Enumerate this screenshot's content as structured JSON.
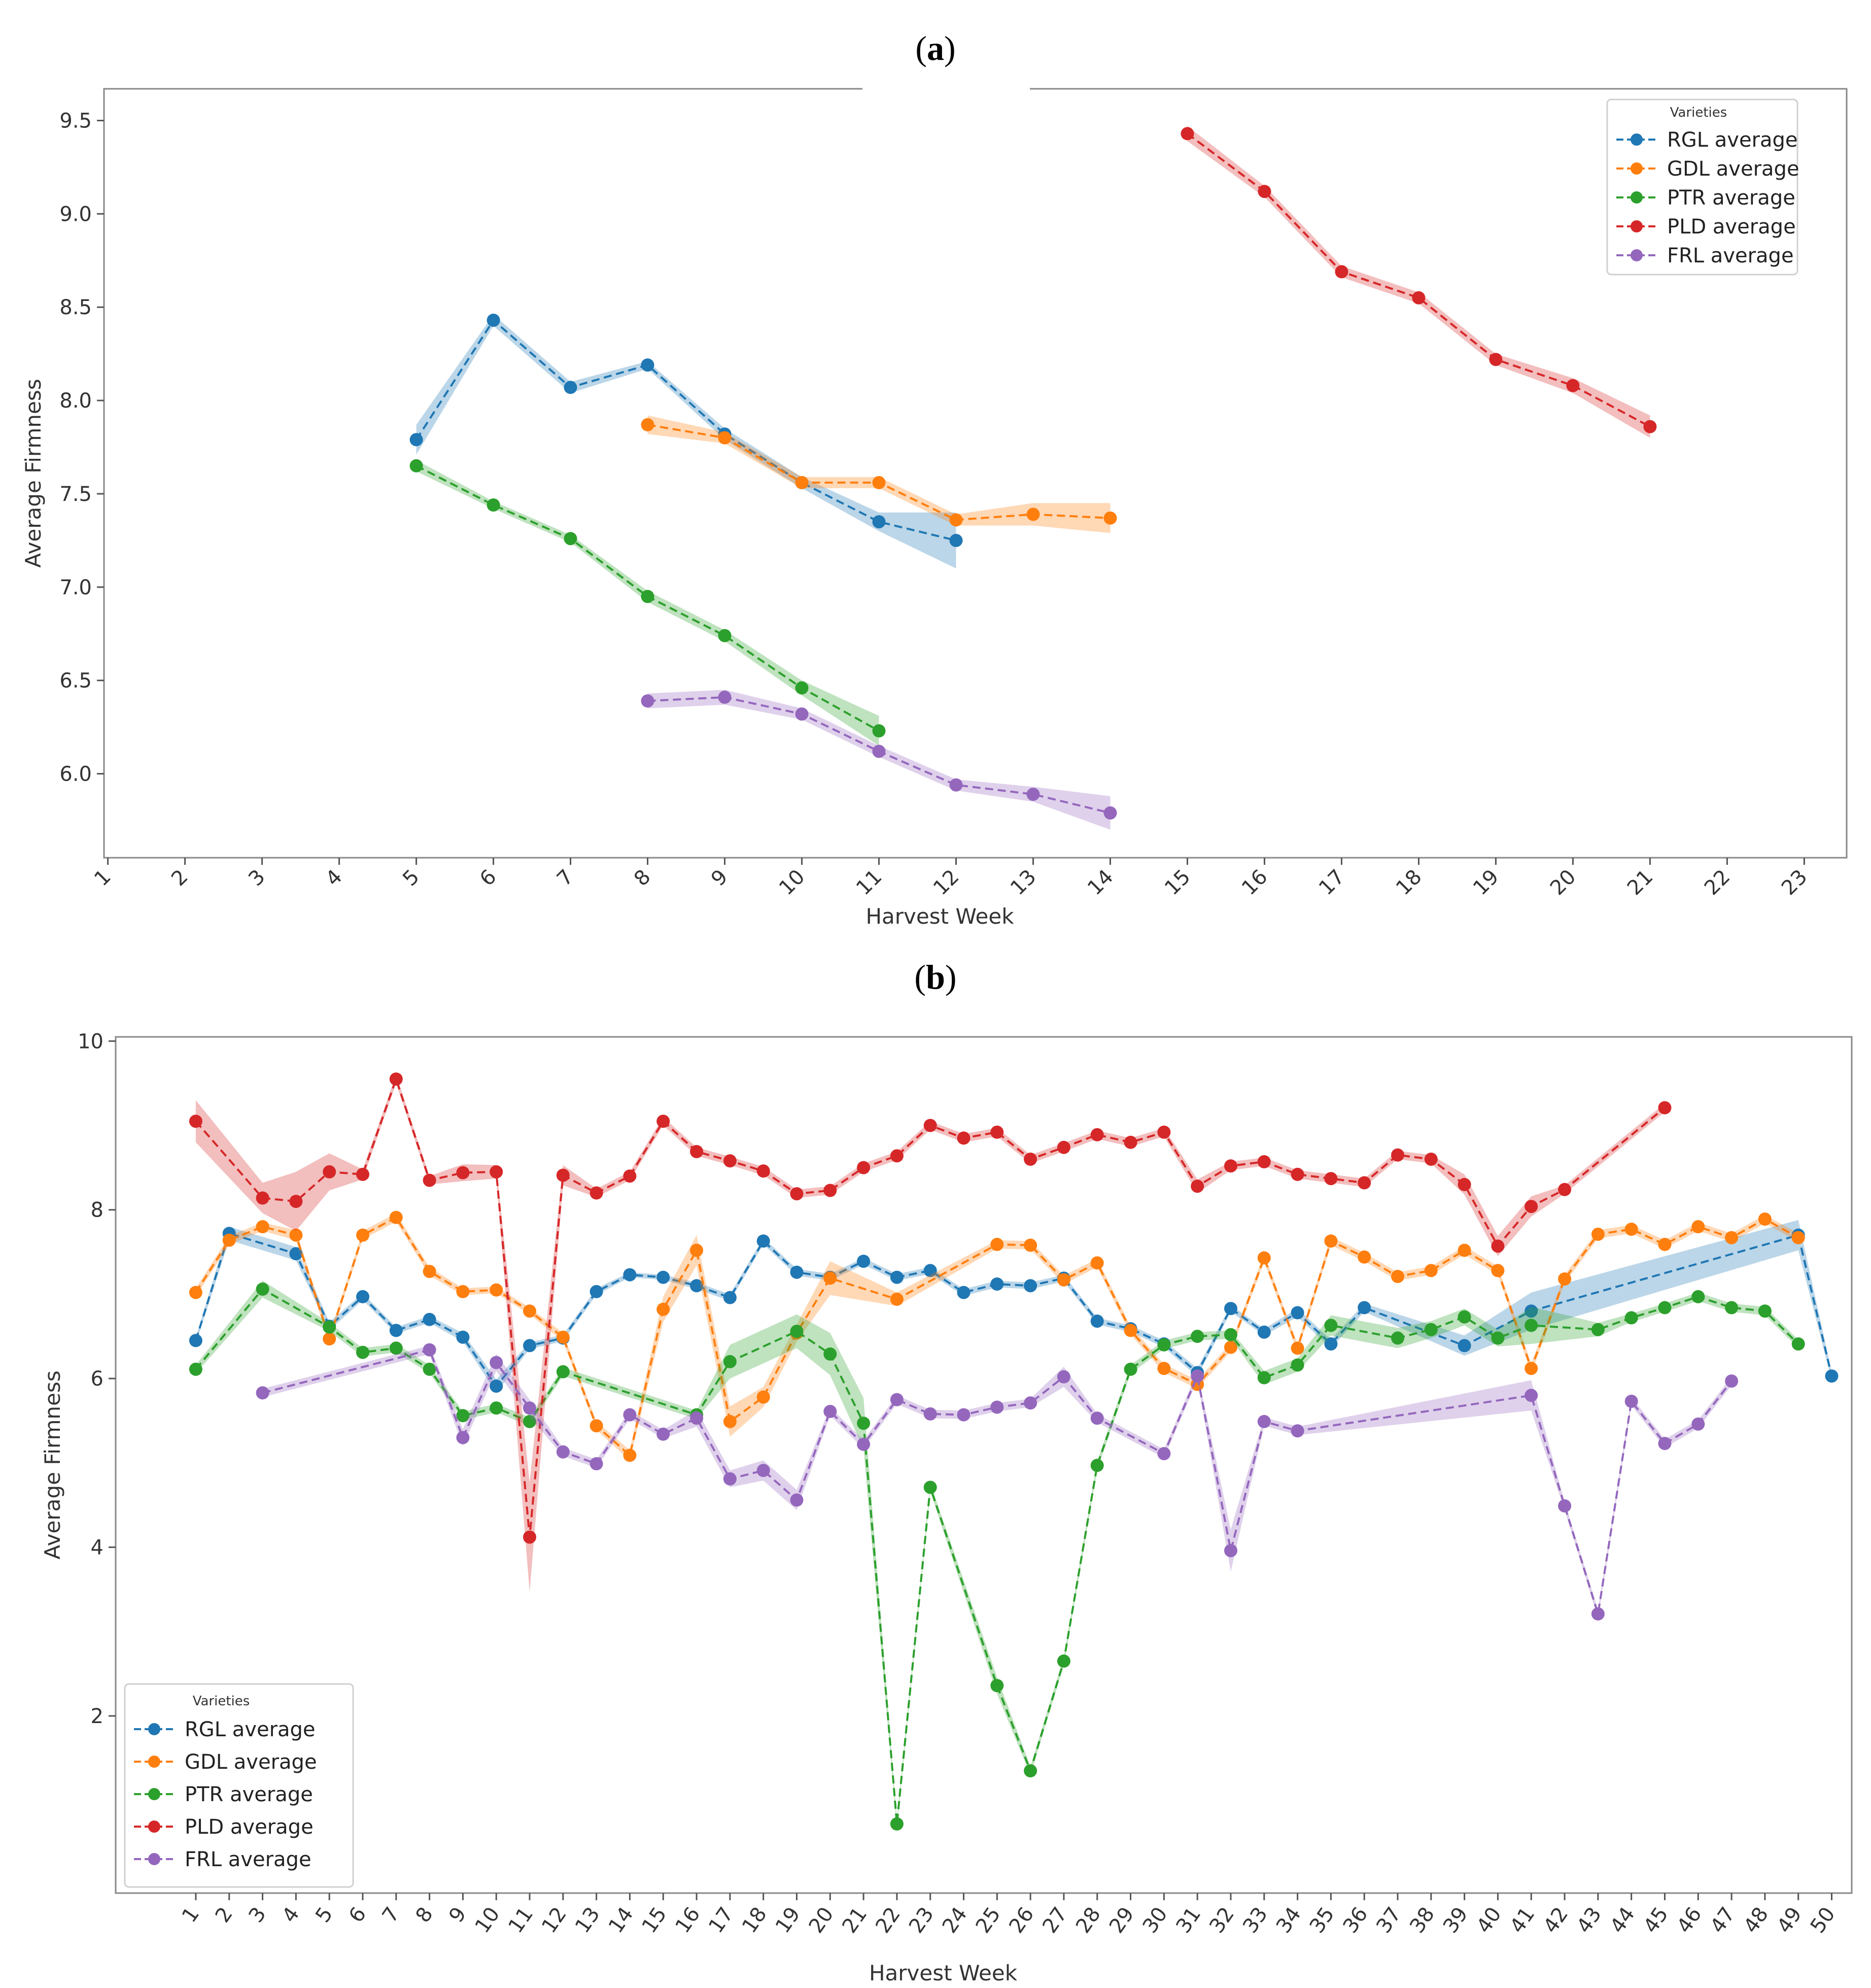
{
  "panels": [
    {
      "label_open": "(",
      "label_letter": "a",
      "label_close": ")"
    },
    {
      "label_open": "(",
      "label_letter": "b",
      "label_close": ")"
    }
  ],
  "colors": {
    "RGL": "#1f77b4",
    "GDL": "#ff7f0e",
    "PTR": "#2ca02c",
    "PLD": "#d62728",
    "FRL": "#9467bd"
  },
  "chart_data": [
    {
      "type": "line",
      "title": "",
      "xlabel": "Harvest Week",
      "ylabel": "Average Firmness",
      "x_ticks": [
        1,
        2,
        3,
        4,
        5,
        6,
        7,
        8,
        9,
        10,
        11,
        12,
        13,
        14,
        15,
        16,
        17,
        18,
        19,
        20,
        21,
        22,
        23
      ],
      "xlim": [
        0.95,
        23.55
      ],
      "ylim": [
        5.55,
        9.67
      ],
      "y_ticks": [
        "6.0",
        "6.5",
        "7.0",
        "7.5",
        "8.0",
        "8.5",
        "9.0",
        "9.5"
      ],
      "legend_title": "Varieties",
      "legend_position": "top-right",
      "series": [
        {
          "name": "RGL average",
          "key": "RGL",
          "x": [
            5,
            6,
            7,
            8,
            9,
            10,
            11,
            12
          ],
          "y": [
            7.79,
            8.43,
            8.07,
            8.19,
            7.82,
            7.56,
            7.35,
            7.25
          ],
          "band": [
            0.08,
            0.03,
            0.03,
            0.02,
            0.03,
            0.03,
            0.05,
            0.15
          ]
        },
        {
          "name": "GDL average",
          "key": "GDL",
          "x": [
            8,
            9,
            10,
            11,
            12,
            13,
            14
          ],
          "y": [
            7.87,
            7.8,
            7.56,
            7.56,
            7.36,
            7.39,
            7.37
          ],
          "band": [
            0.05,
            0.03,
            0.03,
            0.03,
            0.03,
            0.06,
            0.08
          ]
        },
        {
          "name": "PTR average",
          "key": "PTR",
          "x": [
            5,
            6,
            7,
            8,
            9,
            10,
            11
          ],
          "y": [
            7.65,
            7.44,
            7.26,
            6.95,
            6.74,
            6.46,
            6.23
          ],
          "band": [
            0.03,
            0.02,
            0.02,
            0.03,
            0.03,
            0.04,
            0.08
          ]
        },
        {
          "name": "PLD average",
          "key": "PLD",
          "x": [
            15,
            16,
            17,
            18,
            19,
            20,
            21
          ],
          "y": [
            9.43,
            9.12,
            8.69,
            8.55,
            8.22,
            8.08,
            7.86
          ],
          "band": [
            0.04,
            0.03,
            0.03,
            0.03,
            0.03,
            0.04,
            0.06
          ]
        },
        {
          "name": "FRL average",
          "key": "FRL",
          "x": [
            8,
            9,
            10,
            11,
            12,
            13,
            14
          ],
          "y": [
            6.39,
            6.41,
            6.32,
            6.12,
            5.94,
            5.89,
            5.79
          ],
          "band": [
            0.04,
            0.04,
            0.03,
            0.03,
            0.03,
            0.04,
            0.09
          ]
        }
      ]
    },
    {
      "type": "line",
      "title": "",
      "xlabel": "Harvest Week",
      "ylabel": "Average Firmness",
      "x_ticks": [
        1,
        2,
        3,
        4,
        5,
        6,
        7,
        8,
        9,
        10,
        11,
        12,
        13,
        14,
        15,
        16,
        17,
        18,
        19,
        20,
        21,
        22,
        23,
        24,
        25,
        26,
        27,
        28,
        29,
        30,
        31,
        32,
        33,
        34,
        35,
        36,
        37,
        38,
        39,
        40,
        41,
        42,
        43,
        44,
        45,
        46,
        47,
        48,
        49,
        50
      ],
      "xlim": [
        -1.4,
        50.6
      ],
      "ylim": [
        -0.1,
        10.05
      ],
      "y_ticks": [
        "2",
        "4",
        "6",
        "8",
        "10"
      ],
      "legend_title": "Varieties",
      "legend_position": "bottom-left",
      "series": [
        {
          "name": "RGL average",
          "key": "RGL",
          "x": [
            1,
            2,
            4,
            5,
            6,
            7,
            8,
            9,
            10,
            11,
            12,
            13,
            14,
            15,
            16,
            17,
            18,
            19,
            20,
            21,
            22,
            23,
            24,
            25,
            26,
            27,
            28,
            29,
            30,
            31,
            32,
            33,
            34,
            35,
            36,
            39,
            41,
            49,
            50
          ],
          "y": [
            6.45,
            7.72,
            7.48,
            6.62,
            6.97,
            6.57,
            6.7,
            6.49,
            5.91,
            6.39,
            6.48,
            7.03,
            7.23,
            7.2,
            7.1,
            6.96,
            7.63,
            7.26,
            7.2,
            7.39,
            7.2,
            7.28,
            7.02,
            7.12,
            7.1,
            7.19,
            6.68,
            6.59,
            6.41,
            6.07,
            6.83,
            6.55,
            6.78,
            6.41,
            6.84,
            6.39,
            6.8,
            7.7,
            6.03
          ],
          "band": [
            0.04,
            0.08,
            0.08,
            0.05,
            0.04,
            0.04,
            0.04,
            0.05,
            0.08,
            0.04,
            0.04,
            0.04,
            0.03,
            0.03,
            0.04,
            0.04,
            0.04,
            0.04,
            0.04,
            0.04,
            0.04,
            0.04,
            0.04,
            0.04,
            0.04,
            0.04,
            0.04,
            0.04,
            0.04,
            0.05,
            0.04,
            0.04,
            0.05,
            0.05,
            0.05,
            0.12,
            0.22,
            0.18,
            0.05
          ]
        },
        {
          "name": "GDL average",
          "key": "GDL",
          "x": [
            1,
            2,
            3,
            4,
            5,
            6,
            7,
            8,
            9,
            10,
            11,
            12,
            13,
            14,
            15,
            16,
            17,
            18,
            19,
            20,
            22,
            25,
            26,
            27,
            28,
            29,
            30,
            31,
            32,
            33,
            34,
            35,
            36,
            37,
            38,
            39,
            40,
            41,
            42,
            43,
            44,
            45,
            46,
            47,
            48,
            49
          ],
          "y": [
            7.02,
            7.64,
            7.8,
            7.7,
            6.47,
            7.7,
            7.91,
            7.27,
            7.03,
            7.05,
            6.8,
            6.49,
            5.44,
            5.09,
            6.82,
            7.52,
            5.49,
            5.78,
            6.54,
            7.19,
            6.94,
            7.59,
            7.58,
            7.17,
            7.37,
            6.57,
            6.12,
            5.93,
            6.37,
            7.43,
            6.36,
            7.63,
            7.44,
            7.21,
            7.28,
            7.52,
            7.28,
            6.12,
            7.18,
            7.71,
            7.77,
            7.59,
            7.8,
            7.67,
            7.89,
            7.67
          ],
          "band": [
            0.05,
            0.05,
            0.05,
            0.06,
            0.05,
            0.05,
            0.05,
            0.05,
            0.04,
            0.04,
            0.04,
            0.05,
            0.05,
            0.06,
            0.15,
            0.18,
            0.18,
            0.12,
            0.1,
            0.2,
            0.08,
            0.05,
            0.05,
            0.05,
            0.05,
            0.05,
            0.05,
            0.05,
            0.05,
            0.05,
            0.05,
            0.05,
            0.05,
            0.05,
            0.05,
            0.05,
            0.05,
            0.06,
            0.05,
            0.05,
            0.05,
            0.05,
            0.05,
            0.05,
            0.05,
            0.05
          ]
        },
        {
          "name": "PTR average",
          "key": "PTR",
          "x": [
            1,
            3,
            5,
            6,
            7,
            8,
            9,
            10,
            11,
            12,
            16,
            17,
            19,
            20,
            21,
            22,
            23,
            25,
            26,
            27,
            28,
            29,
            30,
            31,
            32,
            33,
            34,
            35,
            37,
            38,
            39,
            40,
            41,
            43,
            44,
            45,
            46,
            47,
            48,
            49
          ],
          "y": [
            6.11,
            7.06,
            6.61,
            6.31,
            6.36,
            6.11,
            5.56,
            5.65,
            5.49,
            6.08,
            5.57,
            6.2,
            6.56,
            6.29,
            5.47,
            0.72,
            4.71,
            2.36,
            1.35,
            2.65,
            4.97,
            6.11,
            6.4,
            6.5,
            6.52,
            6.01,
            6.16,
            6.63,
            6.48,
            6.58,
            6.73,
            6.48,
            6.63,
            6.58,
            6.72,
            6.84,
            6.97,
            6.84,
            6.8,
            6.41
          ],
          "band": [
            0.05,
            0.1,
            0.05,
            0.05,
            0.05,
            0.05,
            0.05,
            0.05,
            0.05,
            0.05,
            0.05,
            0.2,
            0.2,
            0.25,
            0.3,
            0.05,
            0.05,
            0.1,
            0.05,
            0.05,
            0.05,
            0.05,
            0.05,
            0.05,
            0.05,
            0.08,
            0.08,
            0.12,
            0.12,
            0.1,
            0.1,
            0.1,
            0.22,
            0.08,
            0.05,
            0.05,
            0.05,
            0.05,
            0.05,
            0.05
          ]
        },
        {
          "name": "PLD average",
          "key": "PLD",
          "x": [
            1,
            3,
            4,
            5,
            6,
            7,
            8,
            9,
            10,
            11,
            12,
            13,
            14,
            15,
            16,
            17,
            18,
            19,
            20,
            21,
            22,
            23,
            24,
            25,
            26,
            27,
            28,
            29,
            30,
            31,
            32,
            33,
            34,
            35,
            36,
            37,
            38,
            39,
            40,
            41,
            42,
            45
          ],
          "y": [
            9.05,
            8.14,
            8.1,
            8.45,
            8.42,
            9.55,
            8.35,
            8.44,
            8.45,
            4.12,
            8.41,
            8.2,
            8.4,
            9.05,
            8.69,
            8.58,
            8.46,
            8.19,
            8.23,
            8.5,
            8.64,
            9.0,
            8.85,
            8.92,
            8.6,
            8.74,
            8.89,
            8.8,
            8.92,
            8.28,
            8.52,
            8.57,
            8.42,
            8.37,
            8.32,
            8.65,
            8.6,
            8.3,
            7.57,
            8.04,
            8.24,
            9.21
          ],
          "band": [
            0.25,
            0.18,
            0.35,
            0.22,
            0.06,
            0.05,
            0.05,
            0.1,
            0.08,
            0.65,
            0.12,
            0.05,
            0.05,
            0.05,
            0.05,
            0.05,
            0.05,
            0.05,
            0.05,
            0.05,
            0.05,
            0.05,
            0.05,
            0.05,
            0.05,
            0.05,
            0.05,
            0.05,
            0.05,
            0.08,
            0.05,
            0.05,
            0.05,
            0.05,
            0.05,
            0.05,
            0.05,
            0.12,
            0.12,
            0.12,
            0.05,
            0.05
          ]
        },
        {
          "name": "FRL average",
          "key": "FRL",
          "x": [
            3,
            8,
            9,
            10,
            11,
            12,
            13,
            14,
            15,
            16,
            17,
            18,
            19,
            20,
            21,
            22,
            23,
            24,
            25,
            26,
            27,
            28,
            30,
            31,
            32,
            33,
            34,
            41,
            42,
            43,
            44,
            45,
            46,
            47
          ],
          "y": [
            5.83,
            6.34,
            5.3,
            6.19,
            5.65,
            5.13,
            4.99,
            5.57,
            5.34,
            5.53,
            4.81,
            4.91,
            4.56,
            5.61,
            5.22,
            5.75,
            5.58,
            5.57,
            5.66,
            5.71,
            6.02,
            5.53,
            5.11,
            6.03,
            3.96,
            5.49,
            5.38,
            5.8,
            4.49,
            3.21,
            5.73,
            5.23,
            5.46,
            5.97
          ],
          "band": [
            0.05,
            0.05,
            0.1,
            0.1,
            0.1,
            0.05,
            0.05,
            0.05,
            0.05,
            0.1,
            0.1,
            0.12,
            0.12,
            0.05,
            0.05,
            0.05,
            0.05,
            0.05,
            0.05,
            0.05,
            0.12,
            0.05,
            0.05,
            0.05,
            0.25,
            0.05,
            0.05,
            0.18,
            0.05,
            0.05,
            0.05,
            0.05,
            0.05,
            0.05
          ]
        }
      ]
    }
  ]
}
